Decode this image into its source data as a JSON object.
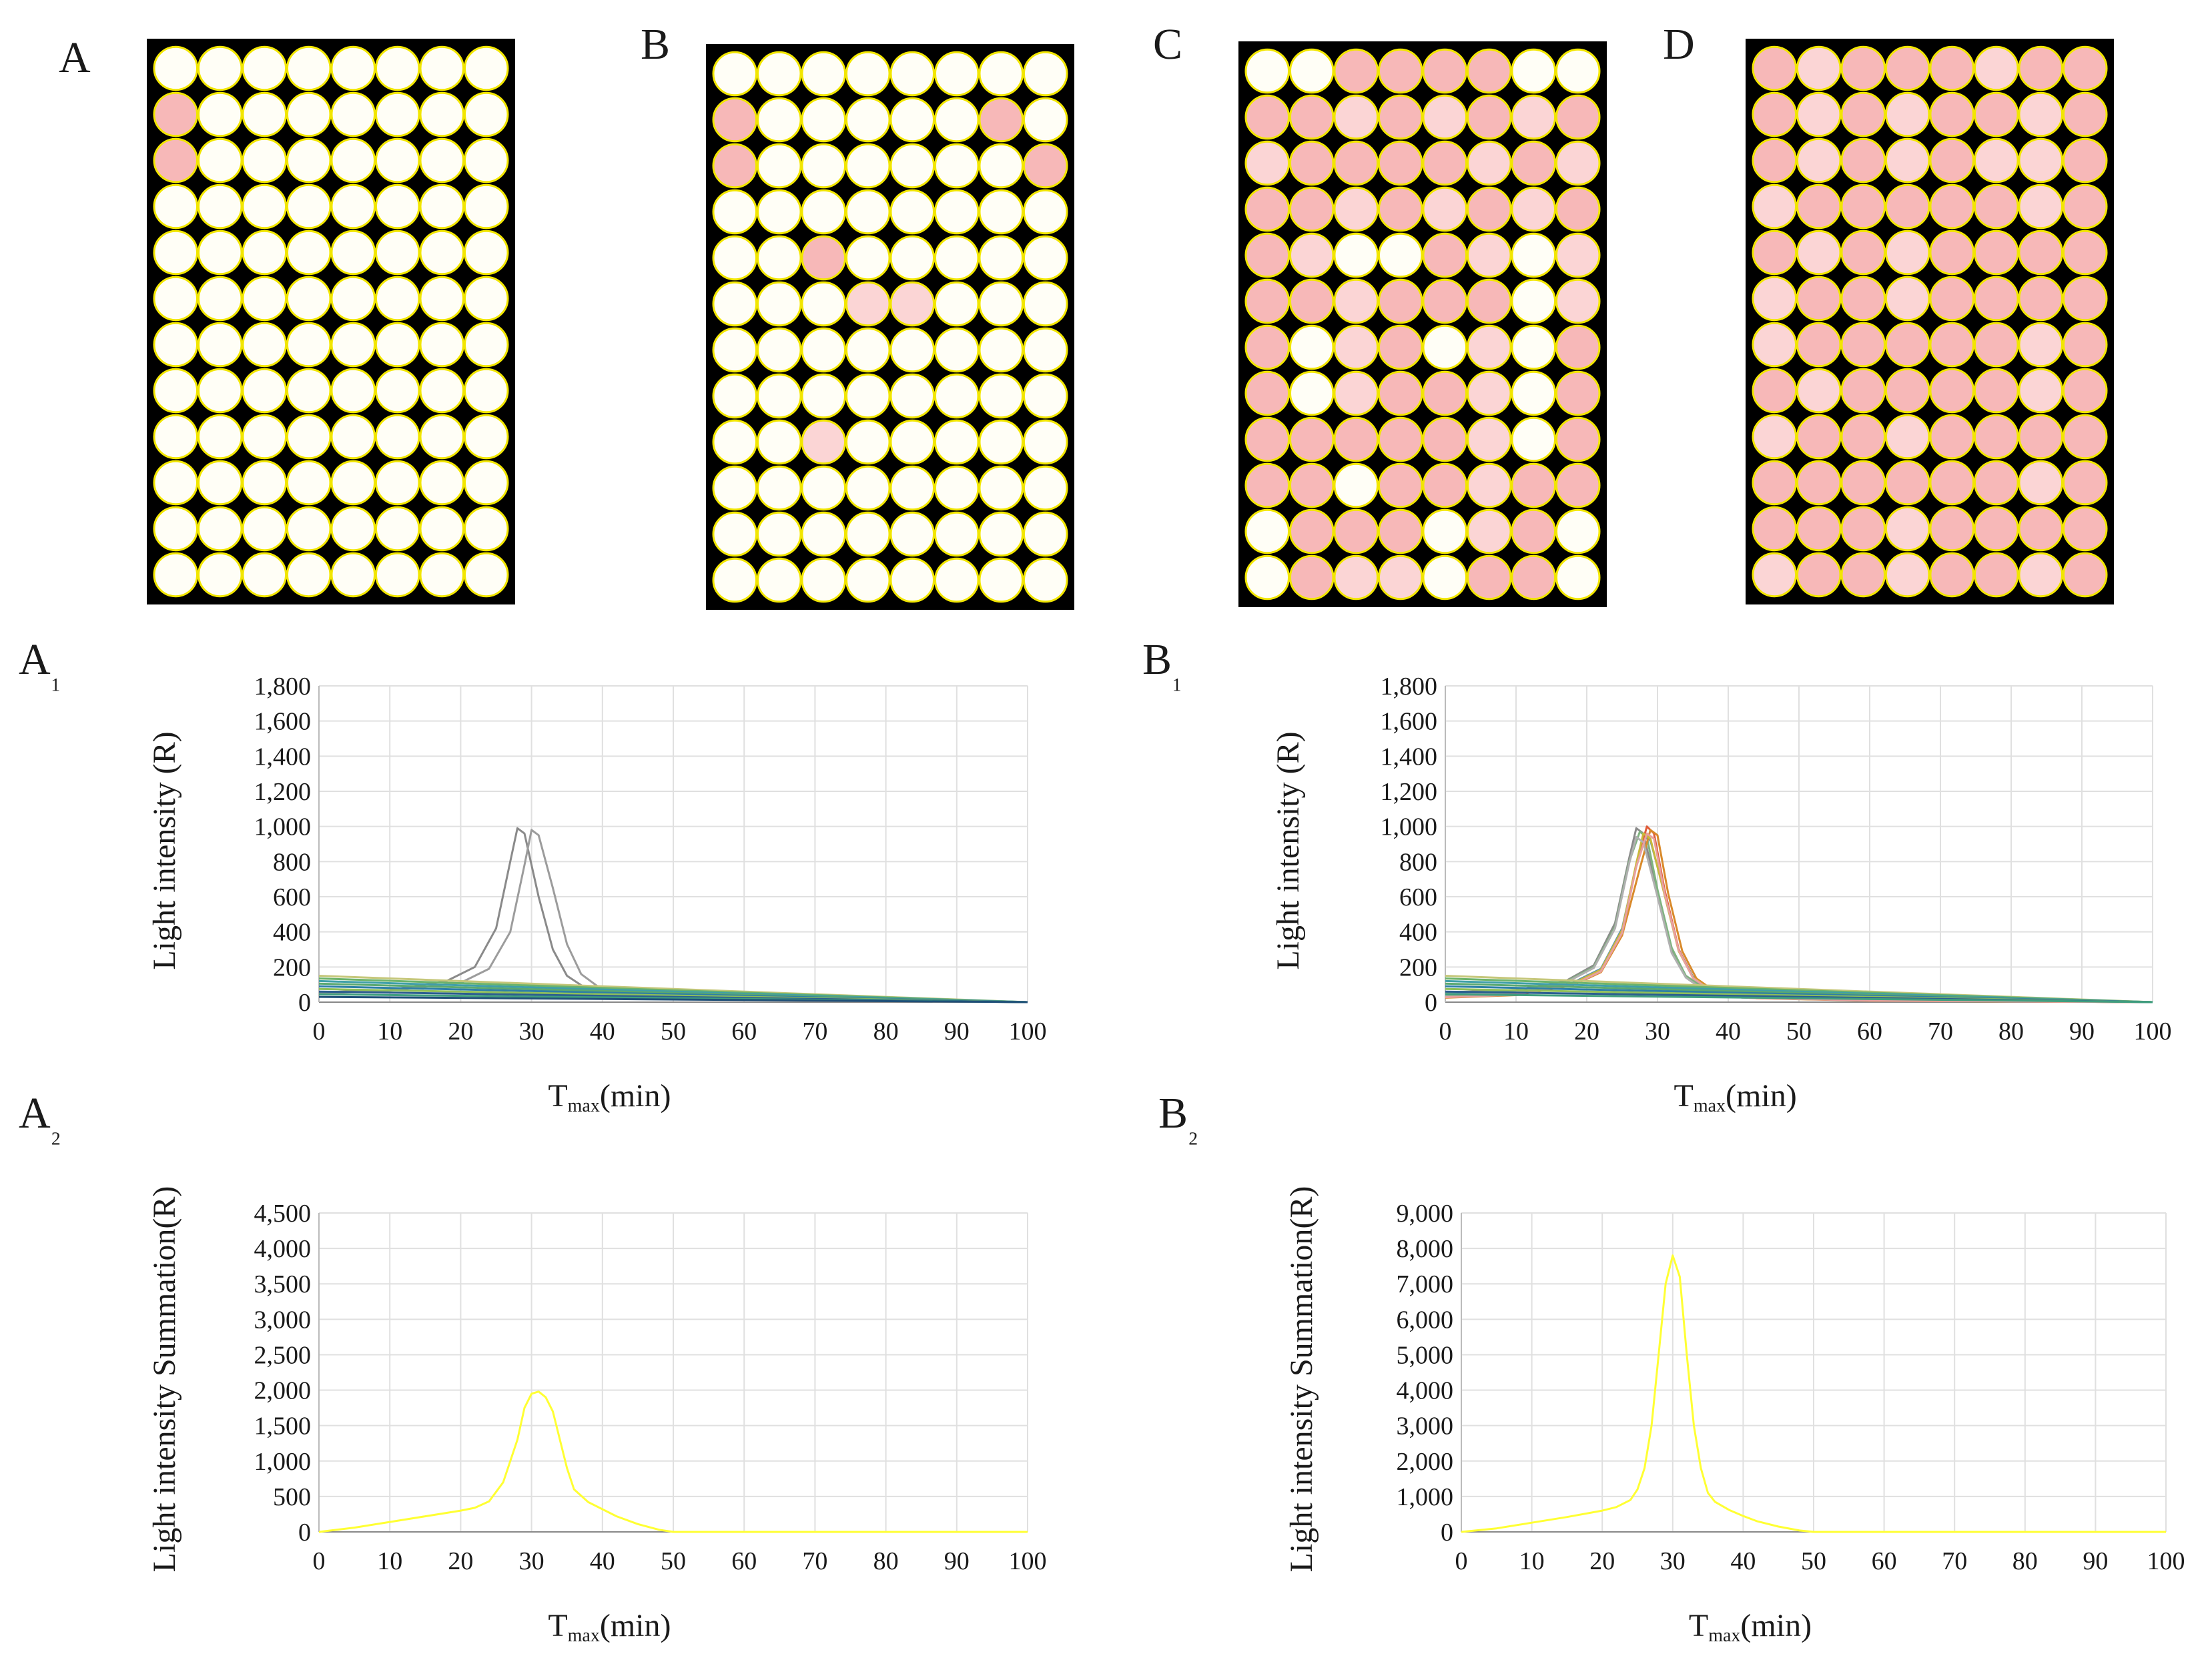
{
  "colors": {
    "plate_bg": "#000000",
    "well_empty": "#fffef6",
    "well_border": "#f2e600",
    "well_pink": "#f7b8b8",
    "well_lightpink": "#fbd5d5",
    "grid": "#e0e0e0",
    "sum_curve": "#ffff33",
    "ref_curve": "#9a9a9a"
  },
  "plates": [
    {
      "label": "A",
      "cols": 8,
      "rows": 12,
      "wells": [
        "........",
        "P.......",
        "P.......",
        "........",
        "........",
        "........",
        "........",
        "........",
        "........",
        "........",
        "........",
        "........"
      ]
    },
    {
      "label": "B",
      "cols": 8,
      "rows": 12,
      "wells": [
        "........",
        "P.....P.",
        "P......P",
        "........",
        "..P.....",
        "...LL...",
        "........",
        "........",
        "..L.....",
        "........",
        "........",
        "........"
      ]
    },
    {
      "label": "C",
      "cols": 8,
      "rows": 12,
      "wells": [
        "..PPPP..",
        "PPLPLPLP",
        "LPPPPLPL",
        "PPLPLPLP",
        "PL..PL.L",
        "PPLPPP.L",
        "P.LP.L.P",
        "P.LPPL.P",
        "PPPPPL.P",
        "PP.PPLPP",
        ".PPP.LP.",
        ".PLL.PP."
      ]
    },
    {
      "label": "D",
      "cols": 8,
      "rows": 12,
      "wells": [
        "PLPPPLPP",
        "PLPLPPLP",
        "PLPLPLLP",
        "LPPPPPLP",
        "PLPLPPPP",
        "LPPLPPPP",
        "LPPPPPLP",
        "PLPPPPLP",
        "LPPLPPPP",
        "PPPPPPLP",
        "PPPLPPPP",
        "LPPLPPLP"
      ]
    }
  ],
  "chart_data": [
    {
      "panel": "A₁",
      "type": "line",
      "ylabel": "Light intensity (R)",
      "xlabel_main": "T",
      "xlabel_sub": "max",
      "xlabel_tail": "(min)",
      "x_ticks": [
        "0",
        "10",
        "20",
        "30",
        "40",
        "50",
        "60",
        "70",
        "80",
        "90",
        "100"
      ],
      "y_ticks": [
        "0",
        "200",
        "400",
        "600",
        "800",
        "1,000",
        "1,200",
        "1,400",
        "1,600",
        "1,800"
      ],
      "xlim": [
        0,
        100
      ],
      "ylim": [
        0,
        1800
      ],
      "grid": true,
      "series": [
        {
          "color": "#8a8a8a",
          "x": [
            0,
            10,
            18,
            22,
            25,
            27,
            28,
            29,
            31,
            33,
            35,
            38,
            45,
            60,
            100
          ],
          "y": [
            55,
            70,
            120,
            200,
            420,
            800,
            990,
            960,
            600,
            300,
            150,
            70,
            45,
            20,
            0
          ]
        },
        {
          "color": "#9c9c9c",
          "x": [
            0,
            10,
            20,
            24,
            27,
            29,
            30,
            31,
            33,
            35,
            37,
            40,
            50,
            70,
            100
          ],
          "y": [
            50,
            65,
            110,
            190,
            400,
            780,
            980,
            950,
            650,
            330,
            160,
            70,
            40,
            15,
            0
          ]
        },
        {
          "color": "#c5c77a",
          "x": [
            0,
            100
          ],
          "y": [
            150,
            0
          ]
        },
        {
          "color": "#6bb36b",
          "x": [
            0,
            100
          ],
          "y": [
            135,
            0
          ]
        },
        {
          "color": "#3f9fa8",
          "x": [
            0,
            100
          ],
          "y": [
            120,
            0
          ]
        },
        {
          "color": "#5aa870",
          "x": [
            0,
            100
          ],
          "y": [
            105,
            0
          ]
        },
        {
          "color": "#2d7fa6",
          "x": [
            0,
            100
          ],
          "y": [
            90,
            0
          ]
        },
        {
          "color": "#8fbf5a",
          "x": [
            0,
            100
          ],
          "y": [
            75,
            0
          ]
        },
        {
          "color": "#2a5d8f",
          "x": [
            0,
            100
          ],
          "y": [
            60,
            0
          ]
        },
        {
          "color": "#3f9e7e",
          "x": [
            0,
            100
          ],
          "y": [
            45,
            0
          ]
        },
        {
          "color": "#1f4f78",
          "x": [
            0,
            100
          ],
          "y": [
            30,
            0
          ]
        }
      ]
    },
    {
      "panel": "B₁",
      "type": "line",
      "ylabel": "Light intensity (R)",
      "xlabel_main": "T",
      "xlabel_sub": "max",
      "xlabel_tail": "(min)",
      "x_ticks": [
        "0",
        "10",
        "20",
        "30",
        "40",
        "50",
        "60",
        "70",
        "80",
        "90",
        "100"
      ],
      "y_ticks": [
        "0",
        "200",
        "400",
        "600",
        "800",
        "1,000",
        "1,200",
        "1,400",
        "1,600",
        "1,800"
      ],
      "xlim": [
        0,
        100
      ],
      "ylim": [
        0,
        1800
      ],
      "grid": true,
      "series": [
        {
          "color": "#8a8a8a",
          "x": [
            0,
            10,
            17,
            21,
            24,
            26,
            27,
            28,
            30,
            32,
            34,
            37,
            42,
            60,
            100
          ],
          "y": [
            55,
            70,
            120,
            210,
            450,
            820,
            990,
            960,
            620,
            300,
            150,
            70,
            40,
            15,
            0
          ]
        },
        {
          "color": "#7fb37f",
          "x": [
            0,
            10,
            17,
            21,
            24,
            26,
            27.5,
            28.5,
            30,
            32,
            34,
            37,
            42,
            60,
            100
          ],
          "y": [
            50,
            65,
            115,
            200,
            430,
            800,
            970,
            940,
            640,
            310,
            150,
            65,
            35,
            12,
            0
          ]
        },
        {
          "color": "#5a8fb0",
          "x": [
            0,
            10,
            18,
            22,
            25,
            27,
            28,
            29,
            31,
            33,
            35,
            38,
            43,
            60,
            100
          ],
          "y": [
            45,
            60,
            110,
            190,
            420,
            780,
            950,
            920,
            620,
            300,
            145,
            60,
            30,
            10,
            0
          ]
        },
        {
          "color": "#e05c3a",
          "x": [
            0,
            10,
            18,
            22,
            25,
            27,
            28.5,
            29.5,
            31,
            33,
            35,
            38,
            43,
            60,
            100
          ],
          "y": [
            30,
            45,
            100,
            180,
            400,
            780,
            1000,
            960,
            640,
            300,
            140,
            55,
            25,
            10,
            0
          ]
        },
        {
          "color": "#d98a2b",
          "x": [
            0,
            10,
            18,
            22,
            25,
            27.5,
            29,
            30,
            31.5,
            33.5,
            35.5,
            38.5,
            44,
            60,
            100
          ],
          "y": [
            25,
            40,
            95,
            170,
            380,
            760,
            980,
            950,
            620,
            290,
            135,
            50,
            22,
            8,
            0
          ]
        },
        {
          "color": "#c9b93a",
          "x": [
            0,
            10,
            18,
            22,
            25,
            27,
            28,
            29,
            31,
            33,
            35,
            38,
            43,
            60,
            100
          ],
          "y": [
            35,
            50,
            105,
            185,
            410,
            790,
            960,
            930,
            610,
            290,
            140,
            55,
            25,
            10,
            0
          ]
        },
        {
          "color": "#b0b0b0",
          "x": [
            0,
            10,
            17,
            21,
            24,
            26,
            27,
            28,
            30,
            32,
            34,
            37,
            42,
            60,
            100
          ],
          "y": [
            40,
            55,
            110,
            195,
            420,
            790,
            940,
            910,
            600,
            280,
            140,
            55,
            25,
            10,
            0
          ]
        },
        {
          "color": "#e8a0a0",
          "x": [
            0,
            10,
            18,
            22,
            25,
            27,
            28.5,
            29.5,
            31,
            33,
            35,
            38,
            43,
            60,
            100
          ],
          "y": [
            28,
            42,
            98,
            175,
            395,
            770,
            960,
            930,
            620,
            295,
            138,
            52,
            24,
            9,
            0
          ]
        },
        {
          "color": "#c5c77a",
          "x": [
            0,
            100
          ],
          "y": [
            150,
            0
          ]
        },
        {
          "color": "#6bb36b",
          "x": [
            0,
            100
          ],
          "y": [
            135,
            0
          ]
        },
        {
          "color": "#3f9fa8",
          "x": [
            0,
            100
          ],
          "y": [
            120,
            0
          ]
        },
        {
          "color": "#5aa870",
          "x": [
            0,
            100
          ],
          "y": [
            105,
            0
          ]
        },
        {
          "color": "#2d7fa6",
          "x": [
            0,
            100
          ],
          "y": [
            90,
            0
          ]
        },
        {
          "color": "#8fbf5a",
          "x": [
            0,
            100
          ],
          "y": [
            75,
            0
          ]
        },
        {
          "color": "#2a5d8f",
          "x": [
            0,
            100
          ],
          "y": [
            60,
            0
          ]
        },
        {
          "color": "#3f9e7e",
          "x": [
            0,
            100
          ],
          "y": [
            45,
            0
          ]
        }
      ]
    },
    {
      "panel": "A₂",
      "type": "line",
      "ylabel": "Light intensity Summation(R)",
      "xlabel_main": "T",
      "xlabel_sub": "max",
      "xlabel_tail": "(min)",
      "x_ticks": [
        "0",
        "10",
        "20",
        "30",
        "40",
        "50",
        "60",
        "70",
        "80",
        "90",
        "100"
      ],
      "y_ticks": [
        "0",
        "500",
        "1,000",
        "1,500",
        "2,000",
        "2,500",
        "3,000",
        "3,500",
        "4,000",
        "4,500"
      ],
      "xlim": [
        0,
        100
      ],
      "ylim": [
        0,
        4500
      ],
      "grid": true,
      "series": [
        {
          "color": "#ffff33",
          "x": [
            0,
            5,
            10,
            15,
            20,
            22,
            24,
            26,
            28,
            29,
            30,
            31,
            32,
            33,
            34,
            35,
            36,
            38,
            40,
            42,
            45,
            48,
            50,
            60,
            80,
            100
          ],
          "y": [
            0,
            60,
            140,
            220,
            300,
            340,
            430,
            700,
            1300,
            1750,
            1950,
            1980,
            1900,
            1700,
            1300,
            900,
            600,
            420,
            320,
            220,
            110,
            30,
            0,
            0,
            0,
            0
          ]
        }
      ]
    },
    {
      "panel": "B₂",
      "type": "line",
      "ylabel": "Light intensity Summation(R)",
      "xlabel_main": "T",
      "xlabel_sub": "max",
      "xlabel_tail": "(min)",
      "x_ticks": [
        "0",
        "10",
        "20",
        "30",
        "40",
        "50",
        "60",
        "70",
        "80",
        "90",
        "100"
      ],
      "y_ticks": [
        "0",
        "1,000",
        "2,000",
        "3,000",
        "4,000",
        "5,000",
        "6,000",
        "7,000",
        "8,000",
        "9,000"
      ],
      "xlim": [
        0,
        100
      ],
      "ylim": [
        0,
        9000
      ],
      "grid": true,
      "series": [
        {
          "color": "#ffff33",
          "x": [
            0,
            5,
            10,
            15,
            20,
            22,
            24,
            25,
            26,
            27,
            28,
            29,
            30,
            31,
            32,
            33,
            34,
            35,
            36,
            38,
            40,
            42,
            45,
            48,
            50,
            60,
            80,
            100
          ],
          "y": [
            0,
            100,
            260,
            420,
            600,
            700,
            900,
            1200,
            1800,
            3000,
            5000,
            7000,
            7800,
            7200,
            5000,
            3000,
            1800,
            1100,
            850,
            620,
            450,
            300,
            150,
            40,
            0,
            0,
            0,
            0
          ]
        }
      ]
    }
  ]
}
